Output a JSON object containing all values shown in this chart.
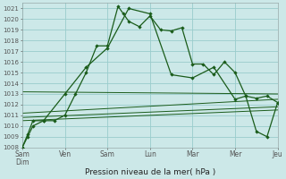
{
  "background_color": "#cce8e8",
  "grid_color": "#99cccc",
  "line_color": "#1a5c1a",
  "xlabel": "Pression niveau de la mer( hPa )",
  "x_labels": [
    "Sam\nDim",
    "Ven",
    "Sam",
    "Lun",
    "Mar",
    "Mer",
    "Jeu"
  ],
  "x_tick_positions": [
    0,
    4,
    8,
    12,
    16,
    20,
    24
  ],
  "xlim": [
    0,
    24
  ],
  "ylim": [
    1008,
    1021.5
  ],
  "yticks": [
    1008,
    1009,
    1010,
    1011,
    1012,
    1013,
    1014,
    1015,
    1016,
    1017,
    1018,
    1019,
    1020,
    1021
  ],
  "series1_x": [
    0,
    0.5,
    1,
    2,
    3,
    4,
    5,
    6,
    7,
    8,
    9,
    9.5,
    10,
    11,
    12,
    13,
    14,
    15,
    16,
    17,
    18,
    19,
    20,
    21,
    22,
    23,
    24
  ],
  "series1_y": [
    1008.0,
    1009.0,
    1010.0,
    1010.5,
    1010.5,
    1011.0,
    1013.0,
    1015.0,
    1017.5,
    1017.5,
    1021.2,
    1020.5,
    1019.8,
    1019.3,
    1020.3,
    1019.0,
    1018.9,
    1019.2,
    1015.8,
    1015.8,
    1014.8,
    1016.0,
    1015.0,
    1012.8,
    1012.6,
    1012.8,
    1012.2
  ],
  "series2_x": [
    0,
    0.5,
    1,
    2,
    4,
    6,
    8,
    10,
    12,
    14,
    16,
    18,
    20,
    21,
    22,
    23,
    24
  ],
  "series2_y": [
    1008.0,
    1009.2,
    1010.5,
    1010.5,
    1013.0,
    1015.5,
    1017.3,
    1021.0,
    1020.5,
    1014.8,
    1014.5,
    1015.5,
    1012.5,
    1012.8,
    1009.5,
    1009.0,
    1012.2
  ],
  "trend_lines": [
    {
      "x": [
        0,
        24
      ],
      "y": [
        1013.2,
        1013.0
      ]
    },
    {
      "x": [
        0,
        24
      ],
      "y": [
        1011.2,
        1012.5
      ]
    },
    {
      "x": [
        0,
        24
      ],
      "y": [
        1010.8,
        1011.8
      ]
    },
    {
      "x": [
        0,
        24
      ],
      "y": [
        1010.5,
        1011.5
      ]
    }
  ]
}
